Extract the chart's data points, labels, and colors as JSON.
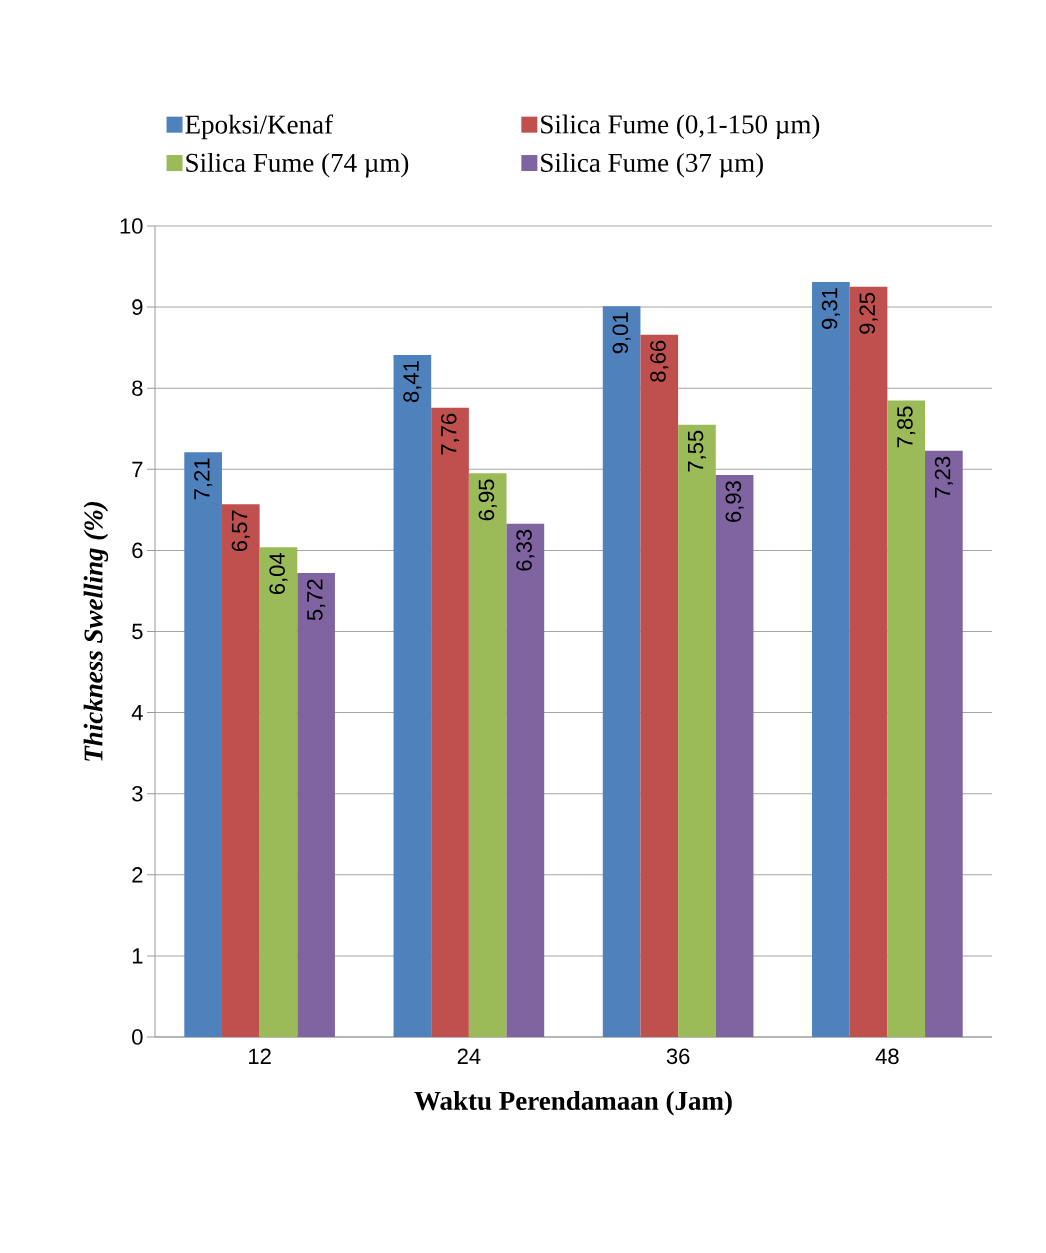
{
  "chart_data": {
    "type": "bar",
    "xlabel": "Waktu Perendamaan (Jam)",
    "ylabel": "Thickness Swelling (%)",
    "categories": [
      "12",
      "24",
      "36",
      "48"
    ],
    "series": [
      {
        "name": "Epoksi/Kenaf",
        "color": "#4f81bd",
        "values": [
          7.21,
          8.41,
          9.01,
          9.31
        ],
        "value_labels": [
          "7,21",
          "8,41",
          "9,01",
          "9,31"
        ]
      },
      {
        "name": "Silica Fume (0,1-150 µm)",
        "color": "#c0504d",
        "values": [
          6.57,
          7.76,
          8.66,
          9.25
        ],
        "value_labels": [
          "6,57",
          "7,76",
          "8,66",
          "9,25"
        ]
      },
      {
        "name": "Silica Fume (74 µm)",
        "color": "#9bbb59",
        "values": [
          6.04,
          6.95,
          7.55,
          7.85
        ],
        "value_labels": [
          "6,04",
          "6,95",
          "7,55",
          "7,85"
        ]
      },
      {
        "name": "Silica Fume (37 µm)",
        "color": "#8064a2",
        "values": [
          5.72,
          6.33,
          6.93,
          7.23
        ],
        "value_labels": [
          "5,72",
          "6,33",
          "6,93",
          "7,23"
        ]
      }
    ],
    "ylim": [
      0,
      10
    ],
    "yticks": [
      0,
      1,
      2,
      3,
      4,
      5,
      6,
      7,
      8,
      9,
      10
    ],
    "grid": "y",
    "legend": "top"
  }
}
